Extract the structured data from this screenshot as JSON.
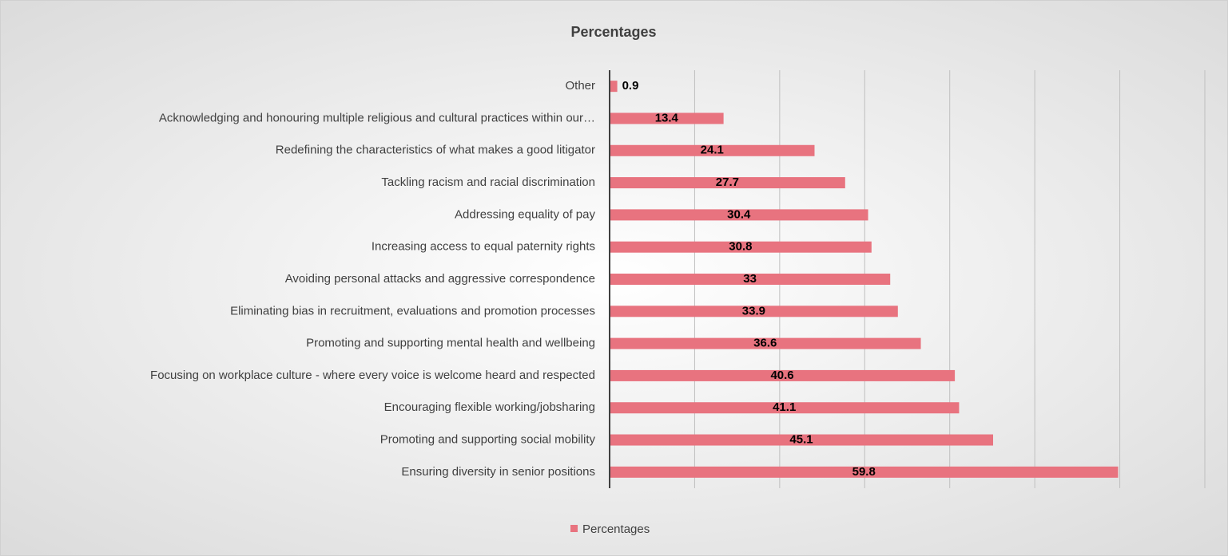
{
  "chart_data": {
    "type": "barh",
    "title": "Percentages",
    "categories": [
      "Other",
      "Acknowledging and honouring multiple religious and cultural practices within our…",
      "Redefining the characteristics of what makes a good litigator",
      "Tackling racism and racial discrimination",
      "Addressing equality of pay",
      "Increasing access to equal paternity rights",
      "Avoiding personal attacks and aggressive correspondence",
      "Eliminating bias in recruitment, evaluations and promotion processes",
      "Promoting and supporting mental health and wellbeing",
      "Focusing on workplace culture - where every voice is welcome heard and respected",
      "Encouraging flexible working/jobsharing",
      "Promoting and supporting social mobility",
      "Ensuring diversity in senior positions"
    ],
    "series": [
      {
        "name": "Percentages",
        "color": "#e8737f",
        "values": [
          0.9,
          13.4,
          24.1,
          27.7,
          30.4,
          30.8,
          33,
          33.9,
          36.6,
          40.6,
          41.1,
          45.1,
          59.8
        ]
      }
    ],
    "xlim": [
      0,
      70
    ],
    "xticks": [
      0,
      10,
      20,
      30,
      40,
      50,
      60,
      70
    ],
    "grid": true,
    "legend": "bottom"
  }
}
